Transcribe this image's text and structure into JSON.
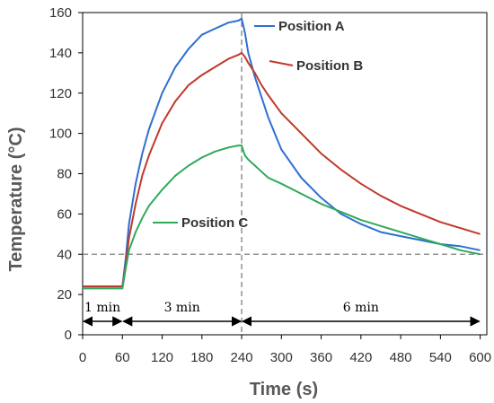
{
  "chart_data": {
    "type": "line",
    "title": "",
    "xlabel": "Time (s)",
    "ylabel": "Temperature (°C)",
    "xlim": [
      0,
      610
    ],
    "ylim": [
      0,
      160
    ],
    "xticks": [
      0,
      60,
      120,
      180,
      240,
      300,
      360,
      420,
      480,
      540,
      600
    ],
    "yticks": [
      0,
      20,
      40,
      60,
      80,
      100,
      120,
      140,
      160
    ],
    "grid": false,
    "reference_lines": [
      {
        "orientation": "vertical",
        "x": 240,
        "style": "dashed"
      },
      {
        "orientation": "horizontal",
        "y": 40,
        "style": "dashed"
      }
    ],
    "phases": [
      {
        "label": "1 min",
        "start": 0,
        "end": 60
      },
      {
        "label": "3 min",
        "start": 60,
        "end": 240
      },
      {
        "label": "6 min",
        "start": 240,
        "end": 600
      }
    ],
    "series": [
      {
        "name": "Position A",
        "color": "#2e6fd1",
        "x": [
          0,
          55,
          60,
          65,
          70,
          80,
          90,
          100,
          120,
          140,
          160,
          180,
          200,
          220,
          235,
          240,
          245,
          250,
          260,
          270,
          280,
          300,
          330,
          360,
          390,
          420,
          450,
          480,
          510,
          540,
          570,
          600
        ],
        "y": [
          24,
          24,
          24,
          38,
          55,
          75,
          90,
          102,
          120,
          133,
          142,
          149,
          152,
          155,
          156,
          157,
          150,
          140,
          128,
          118,
          108,
          92,
          78,
          68,
          60,
          55,
          51,
          49,
          47,
          45,
          44,
          42
        ]
      },
      {
        "name": "Position B",
        "color": "#c0392b",
        "x": [
          0,
          55,
          60,
          65,
          70,
          80,
          90,
          100,
          120,
          140,
          160,
          180,
          200,
          220,
          235,
          240,
          245,
          250,
          260,
          270,
          280,
          300,
          330,
          360,
          390,
          420,
          450,
          480,
          510,
          540,
          570,
          600
        ],
        "y": [
          24,
          24,
          24,
          35,
          48,
          65,
          79,
          89,
          105,
          116,
          124,
          129,
          133,
          137,
          139,
          140,
          138,
          135,
          130,
          124,
          119,
          110,
          100,
          90,
          82,
          75,
          69,
          64,
          60,
          56,
          53,
          50
        ]
      },
      {
        "name": "Position C",
        "color": "#2eaa5c",
        "x": [
          0,
          55,
          60,
          65,
          70,
          80,
          90,
          100,
          120,
          140,
          160,
          180,
          200,
          220,
          235,
          240,
          245,
          250,
          260,
          270,
          280,
          300,
          330,
          360,
          390,
          420,
          450,
          480,
          510,
          540,
          570,
          600
        ],
        "y": [
          23,
          23,
          23,
          33,
          42,
          51,
          58,
          64,
          72,
          79,
          84,
          88,
          91,
          93,
          94,
          94,
          89,
          87,
          84,
          81,
          78,
          75,
          70,
          65,
          61,
          57,
          54,
          51,
          48,
          45,
          42,
          40
        ]
      }
    ]
  }
}
